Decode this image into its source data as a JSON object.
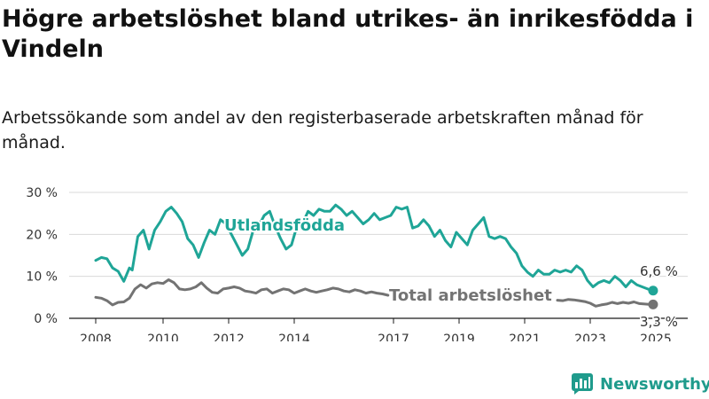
{
  "title": "Högre arbetslöshet bland utrikes- än inrikesfödda i Vindeln",
  "subtitle": "Arbetssökande som andel av den registerbaserade arbetskraften månad för månad.",
  "logo_text": "Newsworthy",
  "colors": {
    "foreign": "#1fa597",
    "total": "#737373",
    "grid": "#d9d9d9",
    "axis": "#1a1a1a",
    "logo": "#1f9b8c"
  },
  "chart_data": {
    "type": "line",
    "title": "",
    "xlabel": "",
    "ylabel": "",
    "ylim": [
      0,
      30
    ],
    "y_ticks": [
      {
        "value": 0,
        "label": "0 %"
      },
      {
        "value": 10,
        "label": "10 %"
      },
      {
        "value": 20,
        "label": "20 %"
      },
      {
        "value": 30,
        "label": "30 %"
      }
    ],
    "x_ticks": [
      "2008",
      "2010",
      "2012",
      "2014",
      "2017",
      "2019",
      "2021",
      "2023",
      "2025"
    ],
    "grid": true,
    "legend": "inline labels",
    "series": [
      {
        "key": "foreign",
        "name": "Utlandsfödda",
        "end_label": "6,6 %",
        "x": [
          "2008-01",
          "2008-03",
          "2008-05",
          "2008-07",
          "2008-09",
          "2008-11",
          "2009-01",
          "2009-02",
          "2009-04",
          "2009-06",
          "2009-08",
          "2009-10",
          "2009-12",
          "2010-02",
          "2010-04",
          "2010-06",
          "2010-08",
          "2010-10",
          "2010-12",
          "2011-02",
          "2011-04",
          "2011-06",
          "2011-08",
          "2011-10",
          "2011-12",
          "2012-02",
          "2012-04",
          "2012-06",
          "2012-08",
          "2012-10",
          "2012-12",
          "2013-02",
          "2013-04",
          "2013-06",
          "2013-08",
          "2013-10",
          "2013-12",
          "2014-02",
          "2014-04",
          "2014-06",
          "2014-08",
          "2014-10",
          "2014-12",
          "2015-02",
          "2015-04",
          "2015-06",
          "2015-08",
          "2015-10",
          "2015-12",
          "2016-02",
          "2016-04",
          "2016-06",
          "2016-08",
          "2016-10",
          "2016-12",
          "2017-02",
          "2017-04",
          "2017-06",
          "2017-08",
          "2017-10",
          "2017-12",
          "2018-02",
          "2018-04",
          "2018-06",
          "2018-08",
          "2018-10",
          "2018-12",
          "2019-02",
          "2019-04",
          "2019-06",
          "2019-08",
          "2019-10",
          "2019-12",
          "2020-02",
          "2020-04",
          "2020-06",
          "2020-08",
          "2020-10",
          "2020-12",
          "2021-02",
          "2021-04",
          "2021-06",
          "2021-08",
          "2021-10",
          "2021-12",
          "2022-02",
          "2022-04",
          "2022-06",
          "2022-08",
          "2022-10",
          "2022-12",
          "2023-02",
          "2023-04",
          "2023-06",
          "2023-08",
          "2023-10",
          "2023-12",
          "2024-02",
          "2024-04",
          "2024-06",
          "2024-08",
          "2024-10",
          "2024-12"
        ],
        "values": [
          13.8,
          14.5,
          14.2,
          12.0,
          11.2,
          8.8,
          12.0,
          11.5,
          19.5,
          21.0,
          16.5,
          21.0,
          23.0,
          25.5,
          26.5,
          25.0,
          23.0,
          19.0,
          17.5,
          14.5,
          18.0,
          21.0,
          20.0,
          23.5,
          22.5,
          20.0,
          17.5,
          15.0,
          16.5,
          21.0,
          22.0,
          24.5,
          25.5,
          22.0,
          19.0,
          16.5,
          17.5,
          22.0,
          22.5,
          25.5,
          24.5,
          26.0,
          25.5,
          25.5,
          27.0,
          26.0,
          24.5,
          25.5,
          24.0,
          22.5,
          23.5,
          25.0,
          23.5,
          24.0,
          24.5,
          26.5,
          26.0,
          26.5,
          21.5,
          22.0,
          23.5,
          22.0,
          19.5,
          21.0,
          18.5,
          17.0,
          20.5,
          19.0,
          17.5,
          21.0,
          22.5,
          24.0,
          19.5,
          19.0,
          19.5,
          19.0,
          17.0,
          15.5,
          12.5,
          11.0,
          10.0,
          11.5,
          10.5,
          10.5,
          11.5,
          11.0,
          11.5,
          11.0,
          12.5,
          11.5,
          9.0,
          7.5,
          8.5,
          9.0,
          8.5,
          10.0,
          9.0,
          7.5,
          9.0,
          8.0,
          7.5,
          7.0,
          6.6
        ]
      },
      {
        "key": "total",
        "name": "Total arbetslöshet",
        "end_label": "3,3 %",
        "x": [
          "2008-01",
          "2008-03",
          "2008-05",
          "2008-07",
          "2008-09",
          "2008-11",
          "2009-01",
          "2009-03",
          "2009-05",
          "2009-07",
          "2009-09",
          "2009-11",
          "2010-01",
          "2010-03",
          "2010-05",
          "2010-07",
          "2010-09",
          "2010-11",
          "2011-01",
          "2011-03",
          "2011-05",
          "2011-07",
          "2011-09",
          "2011-11",
          "2012-01",
          "2012-03",
          "2012-05",
          "2012-07",
          "2012-09",
          "2012-11",
          "2013-01",
          "2013-03",
          "2013-05",
          "2013-07",
          "2013-09",
          "2013-11",
          "2014-01",
          "2014-03",
          "2014-05",
          "2014-07",
          "2014-09",
          "2014-11",
          "2015-01",
          "2015-03",
          "2015-05",
          "2015-07",
          "2015-09",
          "2015-11",
          "2016-01",
          "2016-03",
          "2016-05",
          "2016-07",
          "2016-09",
          "2016-11",
          null,
          "2022-01",
          "2022-03",
          "2022-05",
          "2022-07",
          "2022-09",
          "2022-11",
          "2023-01",
          "2023-03",
          "2023-05",
          "2023-07",
          "2023-09",
          "2023-11",
          "2024-01",
          "2024-03",
          "2024-05",
          "2024-07",
          "2024-09",
          "2024-11",
          "2024-12"
        ],
        "values": [
          5.0,
          4.8,
          4.2,
          3.2,
          3.8,
          3.9,
          4.8,
          7.0,
          8.0,
          7.2,
          8.2,
          8.5,
          8.3,
          9.2,
          8.5,
          7.0,
          6.8,
          7.0,
          7.5,
          8.5,
          7.2,
          6.2,
          6.0,
          7.0,
          7.2,
          7.5,
          7.2,
          6.5,
          6.3,
          6.0,
          6.8,
          7.0,
          6.0,
          6.5,
          7.0,
          6.8,
          6.0,
          6.5,
          7.0,
          6.5,
          6.2,
          6.5,
          6.8,
          7.2,
          7.0,
          6.5,
          6.3,
          6.8,
          6.5,
          6.0,
          6.3,
          6.0,
          5.8,
          5.5,
          null,
          4.3,
          4.2,
          4.5,
          4.4,
          4.2,
          4.0,
          3.6,
          2.9,
          3.2,
          3.4,
          3.8,
          3.5,
          3.8,
          3.6,
          3.9,
          3.5,
          3.4,
          3.3,
          3.3
        ]
      }
    ]
  }
}
